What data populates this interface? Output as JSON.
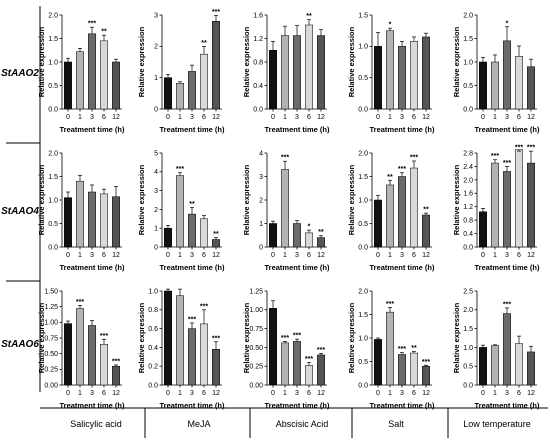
{
  "row_labels": [
    "StAAO2",
    "StAAO4",
    "StAAO6"
  ],
  "column_labels": [
    "Salicylic acid",
    "MeJA",
    "Abscisic Acid",
    "Salt",
    "Low temperature"
  ],
  "bar_colors": [
    "#111111",
    "#b3b3b3",
    "#6b6b6b",
    "#d9d9d9",
    "#555555"
  ],
  "chart_data": [
    {
      "type": "bar",
      "row": "StAAO2",
      "treatment": "Salicylic acid",
      "xlabel": "Treatment time (h)",
      "ylabel": "Relative expression",
      "categories": [
        "0",
        "1",
        "3",
        "6",
        "12"
      ],
      "values": [
        1.0,
        1.22,
        1.6,
        1.45,
        1.0
      ],
      "errors": [
        0.08,
        0.07,
        0.14,
        0.12,
        0.06
      ],
      "significance": [
        "",
        "",
        "***",
        "**",
        ""
      ],
      "ylim": [
        0,
        2.0
      ],
      "yticks": [
        0.0,
        0.5,
        1.0,
        1.5,
        2.0
      ],
      "tick_labels": [
        "0.0",
        "0.5",
        "1.0",
        "1.5",
        "2.0"
      ]
    },
    {
      "type": "bar",
      "row": "StAAO2",
      "treatment": "MeJA",
      "xlabel": "Treatment time (h)",
      "ylabel": "Relative expression",
      "categories": [
        "0",
        "1",
        "3",
        "6",
        "12"
      ],
      "values": [
        1.0,
        0.82,
        1.2,
        1.75,
        2.8
      ],
      "errors": [
        0.1,
        0.05,
        0.2,
        0.25,
        0.18
      ],
      "significance": [
        "",
        "",
        "",
        "**",
        "***"
      ],
      "ylim": [
        0,
        3
      ],
      "yticks": [
        0,
        1,
        2,
        3
      ],
      "tick_labels": [
        "0",
        "1",
        "2",
        "3"
      ]
    },
    {
      "type": "bar",
      "row": "StAAO2",
      "treatment": "Abscisic Acid",
      "xlabel": "Treatment time (h)",
      "ylabel": "Relative expression",
      "categories": [
        "0",
        "1",
        "3",
        "6",
        "12"
      ],
      "values": [
        1.0,
        1.25,
        1.25,
        1.43,
        1.25
      ],
      "errors": [
        0.15,
        0.16,
        0.17,
        0.09,
        0.1
      ],
      "significance": [
        "",
        "",
        "",
        "**",
        ""
      ],
      "ylim": [
        0,
        1.6
      ],
      "yticks": [
        0.0,
        0.4,
        0.8,
        1.2,
        1.6
      ],
      "tick_labels": [
        "0.0",
        "0.4",
        "0.8",
        "1.2",
        "1.6"
      ]
    },
    {
      "type": "bar",
      "row": "StAAO2",
      "treatment": "Salt",
      "xlabel": "Treatment time (h)",
      "ylabel": "Relative expression",
      "categories": [
        "0",
        "1",
        "3",
        "6",
        "12"
      ],
      "values": [
        1.0,
        1.25,
        1.0,
        1.08,
        1.15
      ],
      "errors": [
        0.22,
        0.04,
        0.08,
        0.07,
        0.06
      ],
      "significance": [
        "",
        "*",
        "",
        "",
        ""
      ],
      "ylim": [
        0,
        1.5
      ],
      "yticks": [
        0.0,
        0.5,
        1.0,
        1.5
      ],
      "tick_labels": [
        "0.0",
        "0.5",
        "1.0",
        "1.5"
      ]
    },
    {
      "type": "bar",
      "row": "StAAO2",
      "treatment": "Low temperature",
      "xlabel": "Treatment time (h)",
      "ylabel": "Relative expression",
      "categories": [
        "0",
        "1",
        "3",
        "6",
        "12"
      ],
      "values": [
        1.0,
        1.0,
        1.45,
        1.12,
        0.9
      ],
      "errors": [
        0.1,
        0.15,
        0.3,
        0.22,
        0.16
      ],
      "significance": [
        "",
        "",
        "*",
        "",
        ""
      ],
      "ylim": [
        0,
        2.0
      ],
      "yticks": [
        0.0,
        0.5,
        1.0,
        1.5,
        2.0
      ],
      "tick_labels": [
        "0.0",
        "0.5",
        "1.0",
        "1.5",
        "2.0"
      ]
    },
    {
      "type": "bar",
      "row": "StAAO4",
      "treatment": "Salicylic acid",
      "xlabel": "Treatment time (h)",
      "ylabel": "Relative expression",
      "categories": [
        "0",
        "1",
        "3",
        "6",
        "12"
      ],
      "values": [
        1.05,
        1.4,
        1.17,
        1.13,
        1.07
      ],
      "errors": [
        0.12,
        0.12,
        0.15,
        0.1,
        0.22
      ],
      "significance": [
        "",
        "",
        "",
        "",
        ""
      ],
      "ylim": [
        0,
        2.0
      ],
      "yticks": [
        0.0,
        0.5,
        1.0,
        1.5,
        2.0
      ],
      "tick_labels": [
        "0.0",
        "0.5",
        "1.0",
        "1.5",
        "2.0"
      ]
    },
    {
      "type": "bar",
      "row": "StAAO4",
      "treatment": "MeJA",
      "xlabel": "Treatment time (h)",
      "ylabel": "Relative expression",
      "categories": [
        "0",
        "1",
        "3",
        "6",
        "12"
      ],
      "values": [
        1.0,
        3.8,
        1.75,
        1.5,
        0.4
      ],
      "errors": [
        0.15,
        0.15,
        0.35,
        0.17,
        0.1
      ],
      "significance": [
        "",
        "***",
        "**",
        "",
        "**"
      ],
      "ylim": [
        0,
        5
      ],
      "yticks": [
        0,
        1,
        2,
        3,
        4,
        5
      ],
      "tick_labels": [
        "0",
        "1",
        "2",
        "3",
        "4",
        "5"
      ]
    },
    {
      "type": "bar",
      "row": "StAAO4",
      "treatment": "Abscisic Acid",
      "xlabel": "Treatment time (h)",
      "ylabel": "Relative expression",
      "categories": [
        "0",
        "1",
        "3",
        "6",
        "12"
      ],
      "values": [
        1.0,
        3.3,
        1.0,
        0.6,
        0.4
      ],
      "errors": [
        0.1,
        0.35,
        0.12,
        0.12,
        0.08
      ],
      "significance": [
        "",
        "***",
        "",
        "*",
        "**"
      ],
      "ylim": [
        0,
        4
      ],
      "yticks": [
        0,
        1,
        2,
        3,
        4
      ],
      "tick_labels": [
        "0",
        "1",
        "2",
        "3",
        "4"
      ]
    },
    {
      "type": "bar",
      "row": "StAAO4",
      "treatment": "Salt",
      "xlabel": "Treatment time (h)",
      "ylabel": "Relative expression",
      "categories": [
        "0",
        "1",
        "3",
        "6",
        "12"
      ],
      "values": [
        1.0,
        1.32,
        1.5,
        1.68,
        0.68
      ],
      "errors": [
        0.1,
        0.1,
        0.08,
        0.15,
        0.04
      ],
      "significance": [
        "",
        "**",
        "***",
        "***",
        "**"
      ],
      "ylim": [
        0,
        2.0
      ],
      "yticks": [
        0.0,
        0.5,
        1.0,
        1.5,
        2.0
      ],
      "tick_labels": [
        "0.0",
        "0.5",
        "1.0",
        "1.5",
        "2.0"
      ]
    },
    {
      "type": "bar",
      "row": "StAAO4",
      "treatment": "Low temperature",
      "xlabel": "Treatment time (h)",
      "ylabel": "Relative expression",
      "categories": [
        "0",
        "1",
        "3",
        "6",
        "12"
      ],
      "values": [
        1.05,
        2.5,
        2.25,
        2.9,
        2.5
      ],
      "errors": [
        0.1,
        0.1,
        0.15,
        0.25,
        0.45
      ],
      "significance": [
        "",
        "***",
        "***",
        "***",
        "***"
      ],
      "ylim": [
        0.0,
        2.8
      ],
      "yticks": [
        0.0,
        0.4,
        0.8,
        1.2,
        1.6,
        2.0,
        2.4,
        2.8
      ],
      "tick_labels": [
        "0.0",
        "0.4",
        "0.8",
        "1.2",
        "1.6",
        "2.0",
        "2.4",
        "2.8"
      ]
    },
    {
      "type": "bar",
      "row": "StAAO6",
      "treatment": "Salicylic acid",
      "xlabel": "Treatment time (h)",
      "ylabel": "Relative expression",
      "categories": [
        "0",
        "1",
        "3",
        "6",
        "12"
      ],
      "values": [
        0.98,
        1.22,
        0.95,
        0.65,
        0.3
      ],
      "errors": [
        0.04,
        0.05,
        0.08,
        0.08,
        0.02
      ],
      "significance": [
        "",
        "***",
        "",
        "***",
        "***"
      ],
      "ylim": [
        0,
        1.5
      ],
      "yticks": [
        0.0,
        0.25,
        0.5,
        0.75,
        1.0,
        1.25,
        1.5
      ],
      "tick_labels": [
        "0.00",
        "0.25",
        "0.50",
        "0.75",
        "1.00",
        "1.25",
        "1.50"
      ]
    },
    {
      "type": "bar",
      "row": "StAAO6",
      "treatment": "MeJA",
      "xlabel": "Treatment time (h)",
      "ylabel": "Relative expression",
      "categories": [
        "0",
        "1",
        "3",
        "6",
        "12"
      ],
      "values": [
        1.0,
        0.95,
        0.6,
        0.65,
        0.38
      ],
      "errors": [
        0.02,
        0.1,
        0.06,
        0.15,
        0.08
      ],
      "significance": [
        "",
        "",
        "***",
        "***",
        "***"
      ],
      "ylim": [
        0,
        1.0
      ],
      "yticks": [
        0.0,
        0.2,
        0.4,
        0.6,
        0.8,
        1.0
      ],
      "tick_labels": [
        "0.0",
        "0.2",
        "0.4",
        "0.6",
        "0.8",
        "1.0"
      ]
    },
    {
      "type": "bar",
      "row": "StAAO6",
      "treatment": "Abscisic Acid",
      "xlabel": "Treatment time (h)",
      "ylabel": "Relative expression",
      "categories": [
        "0",
        "1",
        "3",
        "6",
        "12"
      ],
      "values": [
        1.02,
        0.56,
        0.58,
        0.26,
        0.4
      ],
      "errors": [
        0.1,
        0.02,
        0.03,
        0.04,
        0.02
      ],
      "significance": [
        "",
        "***",
        "***",
        "***",
        "***"
      ],
      "ylim": [
        0,
        1.25
      ],
      "yticks": [
        0.0,
        0.25,
        0.5,
        0.75,
        1.0,
        1.25
      ],
      "tick_labels": [
        "0.00",
        "0.25",
        "0.50",
        "0.75",
        "1.00",
        "1.25"
      ]
    },
    {
      "type": "bar",
      "row": "StAAO6",
      "treatment": "Salt",
      "xlabel": "Treatment time (h)",
      "ylabel": "Relative expression",
      "categories": [
        "0",
        "1",
        "3",
        "6",
        "12"
      ],
      "values": [
        0.97,
        1.55,
        0.65,
        0.68,
        0.4
      ],
      "errors": [
        0.03,
        0.1,
        0.04,
        0.03,
        0.02
      ],
      "significance": [
        "",
        "***",
        "***",
        "**",
        "***"
      ],
      "ylim": [
        0,
        2.0
      ],
      "yticks": [
        0.0,
        0.5,
        1.0,
        1.5,
        2.0
      ],
      "tick_labels": [
        "0.0",
        "0.5",
        "1.0",
        "1.5",
        "2.0"
      ]
    },
    {
      "type": "bar",
      "row": "StAAO6",
      "treatment": "Low temperature",
      "xlabel": "Treatment time (h)",
      "ylabel": "Relative expression",
      "categories": [
        "0",
        "1",
        "3",
        "6",
        "12"
      ],
      "values": [
        1.0,
        1.05,
        1.9,
        1.1,
        0.88
      ],
      "errors": [
        0.06,
        0.02,
        0.15,
        0.2,
        0.15
      ],
      "significance": [
        "",
        "",
        "***",
        "",
        ""
      ],
      "ylim": [
        0,
        2.5
      ],
      "yticks": [
        0.0,
        0.5,
        1.0,
        1.5,
        2.0,
        2.5
      ],
      "tick_labels": [
        "0.0",
        "0.5",
        "1.0",
        "1.5",
        "2.0",
        "2.5"
      ]
    }
  ]
}
